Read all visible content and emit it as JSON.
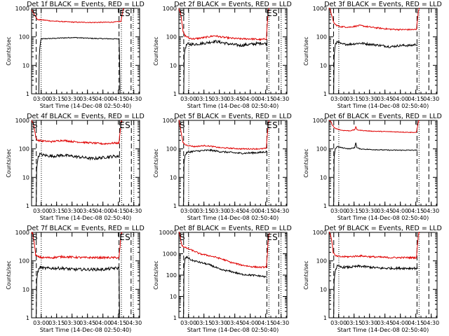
{
  "chart_data": [
    {
      "type": "line",
      "title": "Det 1f BLACK = Events, RED = LLD",
      "xlabel": "Start Time (14-Dec-08 02:50:40)",
      "ylabel": "Counts/sec",
      "x_ticks": [
        "03:00",
        "03:15",
        "03:30",
        "03:45",
        "04:00",
        "04:15",
        "04:30"
      ],
      "x_range_min": [
        0,
        105
      ],
      "y_scale": "log",
      "y_ticks": [
        "1",
        "10",
        "100",
        "1000"
      ],
      "ylim": [
        1,
        1000
      ],
      "markers": {
        "start": "S",
        "end": "E"
      },
      "vlines_min": [
        4.5,
        9.3,
        85,
        87.3,
        96.7,
        98.8
      ],
      "series": [
        {
          "color": "#000000",
          "noise": 0.015,
          "x": [
            5,
            7,
            8,
            9.3,
            20,
            40,
            60,
            80,
            85,
            85.3,
            85.6,
            86
          ],
          "y": [
            0,
            0,
            40,
            85,
            88,
            95,
            88,
            85,
            85,
            60,
            1,
            1
          ]
        },
        {
          "color": "#e00000",
          "noise": 0.015,
          "x": [
            0,
            1,
            2,
            3,
            4,
            6,
            9,
            20,
            40,
            60,
            80,
            87,
            88,
            89,
            90
          ],
          "y": [
            900,
            800,
            700,
            600,
            500,
            400,
            400,
            360,
            330,
            320,
            330,
            350,
            600,
            950,
            1000
          ]
        }
      ]
    },
    {
      "type": "line",
      "title": "Det 2f BLACK = Events, RED = LLD",
      "xlabel": "Start Time (14-Dec-08 02:50:40)",
      "ylabel": "Counts/sec",
      "x_ticks": [
        "03:00",
        "03:15",
        "03:30",
        "03:45",
        "04:00",
        "04:15",
        "04:30"
      ],
      "x_range_min": [
        0,
        105
      ],
      "y_scale": "log",
      "y_ticks": [
        "1",
        "10",
        "100",
        "1000"
      ],
      "ylim": [
        1,
        1000
      ],
      "markers": {
        "start": "S",
        "end": "E"
      },
      "vlines_min": [
        4.7,
        9.7,
        85.6,
        87.5,
        97,
        99.4
      ],
      "series": [
        {
          "color": "#000000",
          "noise": 0.05,
          "x": [
            4.7,
            5,
            6,
            8,
            10,
            15,
            25,
            35,
            40,
            50,
            60,
            70,
            80,
            85,
            86
          ],
          "y": [
            1,
            15,
            40,
            55,
            55,
            55,
            60,
            70,
            65,
            55,
            50,
            55,
            60,
            58,
            50
          ]
        },
        {
          "color": "#e00000",
          "noise": 0.03,
          "x": [
            0,
            1,
            2,
            3,
            4,
            6,
            10,
            15,
            25,
            35,
            40,
            50,
            60,
            70,
            80,
            85,
            86,
            87,
            88
          ],
          "y": [
            1000,
            800,
            600,
            300,
            150,
            110,
            90,
            85,
            95,
            110,
            100,
            90,
            85,
            85,
            80,
            85,
            300,
            900,
            1000
          ]
        }
      ]
    },
    {
      "type": "line",
      "title": "Det 3f BLACK = Events, RED = LLD",
      "xlabel": "Start Time (14-Dec-08 02:50:40)",
      "ylabel": "Counts/sec",
      "x_ticks": [
        "03:00",
        "03:15",
        "03:30",
        "03:45",
        "04:00",
        "04:15",
        "04:30"
      ],
      "x_range_min": [
        0,
        105
      ],
      "y_scale": "log",
      "y_ticks": [
        "1",
        "10",
        "100",
        "1000"
      ],
      "ylim": [
        1,
        1000
      ],
      "markers": {},
      "vlines_min": [
        4.4,
        9.5,
        85.5,
        87.5,
        97
      ],
      "series": [
        {
          "color": "#000000",
          "noise": 0.04,
          "x": [
            4.5,
            5,
            6,
            8,
            12,
            20,
            30,
            40,
            50,
            60,
            70,
            80,
            85,
            86
          ],
          "y": [
            1,
            20,
            50,
            70,
            55,
            55,
            60,
            55,
            50,
            45,
            50,
            50,
            55,
            50
          ]
        },
        {
          "color": "#e00000",
          "noise": 0.025,
          "x": [
            0,
            1,
            2,
            3,
            4,
            6,
            10,
            20,
            30,
            40,
            50,
            60,
            70,
            80,
            85,
            86,
            87,
            88
          ],
          "y": [
            1000,
            900,
            700,
            500,
            350,
            270,
            230,
            220,
            250,
            220,
            200,
            185,
            180,
            180,
            180,
            400,
            900,
            1000
          ]
        }
      ]
    },
    {
      "type": "line",
      "title": "Det 4f BLACK = Events, RED = LLD",
      "xlabel": "Start Time (14-Dec-08 02:50:40)",
      "ylabel": "Counts/sec",
      "x_ticks": [
        "03:00",
        "03:15",
        "03:30",
        "03:45",
        "04:00",
        "04:15",
        "04:30"
      ],
      "x_range_min": [
        0,
        105
      ],
      "y_scale": "log",
      "y_ticks": [
        "1",
        "10",
        "100",
        "1000"
      ],
      "ylim": [
        1,
        1000
      ],
      "markers": {
        "start": "S",
        "end": "E"
      },
      "vlines_min": [
        4.6,
        9.5,
        85.5,
        87.5,
        97,
        99.4
      ],
      "series": [
        {
          "color": "#000000",
          "noise": 0.05,
          "x": [
            4.5,
            5,
            6,
            8,
            12,
            20,
            30,
            40,
            50,
            60,
            70,
            80,
            85,
            86
          ],
          "y": [
            1,
            20,
            45,
            65,
            60,
            55,
            60,
            55,
            50,
            45,
            50,
            55,
            55,
            50
          ]
        },
        {
          "color": "#e00000",
          "noise": 0.03,
          "x": [
            0,
            1,
            2,
            3,
            4,
            6,
            10,
            20,
            30,
            40,
            50,
            60,
            70,
            80,
            85,
            86,
            87,
            88
          ],
          "y": [
            1000,
            900,
            700,
            450,
            250,
            200,
            190,
            180,
            200,
            180,
            170,
            160,
            150,
            160,
            160,
            350,
            900,
            1000
          ]
        }
      ]
    },
    {
      "type": "line",
      "title": "Det 5f BLACK = Events, RED = LLD",
      "xlabel": "Start Time (14-Dec-08 02:50:40)",
      "ylabel": "Counts/sec",
      "x_ticks": [
        "03:00",
        "03:15",
        "03:30",
        "03:45",
        "04:00",
        "04:15",
        "04:30"
      ],
      "x_range_min": [
        0,
        105
      ],
      "y_scale": "log",
      "y_ticks": [
        "1",
        "10",
        "100",
        "1000"
      ],
      "ylim": [
        1,
        1000
      ],
      "markers": {
        "start": "S",
        "end": "E"
      },
      "vlines_min": [
        4.6,
        9.5,
        85.5,
        87.5,
        97
      ],
      "series": [
        {
          "color": "#000000",
          "noise": 0.03,
          "x": [
            4.5,
            5,
            6,
            8,
            12,
            20,
            30,
            40,
            50,
            60,
            70,
            80,
            85,
            86
          ],
          "y": [
            1,
            30,
            60,
            75,
            80,
            85,
            90,
            80,
            75,
            70,
            72,
            75,
            80,
            75
          ]
        },
        {
          "color": "#e00000",
          "noise": 0.02,
          "x": [
            0,
            1,
            2,
            3,
            4,
            6,
            10,
            15,
            25,
            30,
            40,
            50,
            60,
            70,
            80,
            85,
            86,
            87,
            88
          ],
          "y": [
            1000,
            700,
            400,
            250,
            170,
            140,
            130,
            120,
            130,
            125,
            110,
            105,
            100,
            100,
            100,
            105,
            300,
            900,
            1000
          ]
        }
      ]
    },
    {
      "type": "line",
      "title": "Det 6f BLACK = Events, RED = LLD",
      "xlabel": "Start Time (14-Dec-08 02:50:40)",
      "ylabel": "Counts/sec",
      "x_ticks": [
        "03:00",
        "03:15",
        "03:30",
        "03:45",
        "04:00",
        "04:15",
        "04:30"
      ],
      "x_range_min": [
        0,
        105
      ],
      "y_scale": "log",
      "y_ticks": [
        "1",
        "10",
        "100",
        "1000"
      ],
      "ylim": [
        1,
        1000
      ],
      "markers": {},
      "vlines_min": [
        4.6,
        9.5,
        85.5,
        87.5,
        97
      ],
      "series": [
        {
          "color": "#000000",
          "noise": 0.015,
          "x": [
            4.5,
            5,
            6,
            8,
            12,
            20,
            25,
            26,
            27,
            30,
            40,
            60,
            80,
            85,
            86
          ],
          "y": [
            1,
            50,
            100,
            120,
            110,
            100,
            110,
            170,
            110,
            100,
            95,
            90,
            90,
            90,
            85
          ]
        },
        {
          "color": "#e00000",
          "noise": 0.012,
          "x": [
            0,
            1,
            2,
            3,
            5,
            8,
            12,
            20,
            25,
            26,
            27,
            30,
            40,
            60,
            80,
            85,
            86,
            87,
            88
          ],
          "y": [
            1000,
            950,
            900,
            700,
            550,
            500,
            450,
            430,
            470,
            600,
            470,
            450,
            420,
            400,
            380,
            380,
            600,
            950,
            1000
          ]
        }
      ]
    },
    {
      "type": "line",
      "title": "Det 7f BLACK = Events, RED = LLD",
      "xlabel": "Start Time (14-Dec-08 02:50:40)",
      "ylabel": "Counts/sec",
      "x_ticks": [
        "03:00",
        "03:15",
        "03:30",
        "03:45",
        "04:00",
        "04:15",
        "04:30"
      ],
      "x_range_min": [
        0,
        105
      ],
      "y_scale": "log",
      "y_ticks": [
        "1",
        "10",
        "100",
        "1000"
      ],
      "ylim": [
        1,
        1000
      ],
      "markers": {
        "start": "S",
        "end": "E"
      },
      "vlines_min": [
        4.6,
        9.4,
        85,
        87.3,
        96.7,
        98.8
      ],
      "series": [
        {
          "color": "#000000",
          "noise": 0.05,
          "x": [
            4.5,
            5,
            6,
            8,
            12,
            20,
            30,
            40,
            50,
            60,
            70,
            80,
            85,
            85.5,
            86
          ],
          "y": [
            1,
            20,
            40,
            60,
            55,
            55,
            55,
            50,
            50,
            50,
            50,
            55,
            55,
            1,
            1
          ]
        },
        {
          "color": "#e00000",
          "noise": 0.035,
          "x": [
            0,
            1,
            2,
            3,
            4,
            6,
            10,
            20,
            30,
            40,
            50,
            60,
            70,
            80,
            85,
            86,
            87,
            88
          ],
          "y": [
            1000,
            900,
            600,
            300,
            160,
            140,
            130,
            130,
            140,
            135,
            130,
            130,
            130,
            130,
            130,
            300,
            900,
            1000
          ]
        }
      ]
    },
    {
      "type": "line",
      "title": "Det 8f BLACK = Events, RED = LLD",
      "xlabel": "Start Time (14-Dec-08 02:50:40)",
      "ylabel": "Counts/sec",
      "x_ticks": [
        "03:00",
        "03:15",
        "03:30",
        "03:45",
        "04:00",
        "04:15",
        "04:30"
      ],
      "x_range_min": [
        0,
        105
      ],
      "y_scale": "log",
      "y_ticks": [
        "1",
        "10",
        "100",
        "1000",
        "10000"
      ],
      "ylim": [
        1,
        10000
      ],
      "markers": {
        "start": "S",
        "end": "E"
      },
      "vlines_min": [
        4.6,
        9.5,
        85.5,
        87.5,
        97,
        99.2
      ],
      "series": [
        {
          "color": "#000000",
          "noise": 0.04,
          "x": [
            4.5,
            5,
            6,
            8,
            12,
            20,
            30,
            40,
            50,
            60,
            70,
            80,
            85,
            86
          ],
          "y": [
            1,
            200,
            600,
            700,
            500,
            400,
            300,
            180,
            150,
            110,
            100,
            90,
            80,
            80
          ]
        },
        {
          "color": "#e00000",
          "noise": 0.035,
          "x": [
            0,
            1,
            2,
            3,
            5,
            8,
            12,
            20,
            30,
            40,
            50,
            60,
            70,
            80,
            85,
            86,
            87,
            88
          ],
          "y": [
            10000,
            8000,
            4000,
            2500,
            2000,
            1800,
            1500,
            1000,
            800,
            600,
            400,
            300,
            250,
            230,
            240,
            800,
            5000,
            10000
          ]
        }
      ]
    },
    {
      "type": "line",
      "title": "Det 9f BLACK = Events, RED = LLD",
      "xlabel": "Start Time (14-Dec-08 02:50:40)",
      "ylabel": "Counts/sec",
      "x_ticks": [
        "03:00",
        "03:15",
        "03:30",
        "03:45",
        "04:00",
        "04:15",
        "04:30"
      ],
      "x_range_min": [
        0,
        105
      ],
      "y_scale": "log",
      "y_ticks": [
        "1",
        "10",
        "100",
        "1000"
      ],
      "ylim": [
        1,
        1000
      ],
      "markers": {},
      "vlines_min": [
        4.6,
        9.5,
        85.5,
        87.5,
        97
      ],
      "series": [
        {
          "color": "#000000",
          "noise": 0.04,
          "x": [
            4.5,
            5,
            6,
            8,
            12,
            20,
            30,
            40,
            50,
            60,
            70,
            80,
            85,
            86
          ],
          "y": [
            1,
            20,
            45,
            65,
            60,
            60,
            65,
            60,
            55,
            55,
            55,
            55,
            55,
            55
          ]
        },
        {
          "color": "#e00000",
          "noise": 0.03,
          "x": [
            0,
            1,
            2,
            3,
            4,
            6,
            10,
            20,
            30,
            40,
            50,
            60,
            70,
            80,
            85,
            86,
            87,
            88
          ],
          "y": [
            1000,
            900,
            700,
            400,
            200,
            150,
            140,
            140,
            150,
            140,
            135,
            130,
            130,
            130,
            130,
            350,
            900,
            1000
          ]
        }
      ]
    }
  ]
}
